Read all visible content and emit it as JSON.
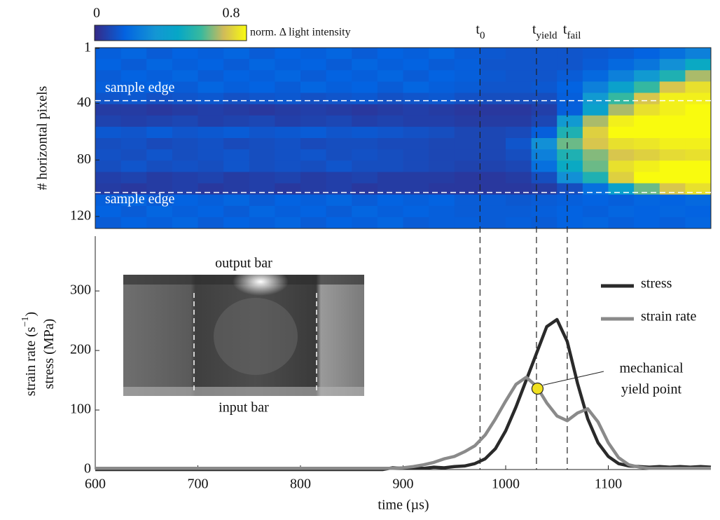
{
  "chart_data": [
    {
      "type": "heatmap",
      "ylabel": "# horizontal pixels",
      "x_edges": [
        600,
        625,
        650,
        675,
        700,
        725,
        750,
        775,
        800,
        825,
        850,
        875,
        900,
        925,
        950,
        975,
        1000,
        1025,
        1050,
        1075,
        1100,
        1125,
        1150,
        1175,
        1200
      ],
      "y_edges": [
        0.5,
        8.5,
        16.5,
        24.5,
        32.5,
        40.5,
        48.5,
        56.5,
        64.5,
        72.5,
        80.5,
        88.5,
        96.5,
        104.5,
        112.5,
        120.5,
        128.5
      ],
      "xlim": [
        600,
        1200
      ],
      "ylim": [
        0.5,
        128.5
      ],
      "yticks": [
        1,
        40,
        80,
        120
      ],
      "y_reversed": true,
      "colorbar": {
        "clim": [
          0,
          0.8
        ],
        "ticks": [
          0,
          0.8
        ],
        "label": "norm. Δ light intensity",
        "colormap": "parula"
      },
      "hlines": [
        {
          "y": 38,
          "label": "sample edge"
        },
        {
          "y": 103,
          "label": "sample edge"
        }
      ],
      "z": [
        [
          0.15,
          0.17,
          0.14,
          0.16,
          0.15,
          0.17,
          0.14,
          0.16,
          0.15,
          0.17,
          0.14,
          0.16,
          0.15,
          0.17,
          0.14,
          0.13,
          0.12,
          0.12,
          0.12,
          0.13,
          0.14,
          0.16,
          0.2,
          0.25
        ],
        [
          0.16,
          0.14,
          0.17,
          0.15,
          0.16,
          0.14,
          0.17,
          0.15,
          0.16,
          0.14,
          0.17,
          0.15,
          0.16,
          0.14,
          0.15,
          0.12,
          0.12,
          0.12,
          0.12,
          0.14,
          0.18,
          0.22,
          0.3,
          0.45
        ],
        [
          0.14,
          0.16,
          0.15,
          0.17,
          0.14,
          0.16,
          0.15,
          0.17,
          0.14,
          0.16,
          0.15,
          0.17,
          0.14,
          0.16,
          0.15,
          0.13,
          0.12,
          0.12,
          0.14,
          0.18,
          0.25,
          0.35,
          0.5,
          0.65
        ],
        [
          0.15,
          0.15,
          0.16,
          0.14,
          0.17,
          0.15,
          0.16,
          0.14,
          0.17,
          0.15,
          0.16,
          0.14,
          0.17,
          0.15,
          0.14,
          0.12,
          0.12,
          0.13,
          0.16,
          0.25,
          0.4,
          0.55,
          0.7,
          0.75
        ],
        [
          0.12,
          0.13,
          0.11,
          0.12,
          0.13,
          0.11,
          0.12,
          0.13,
          0.11,
          0.12,
          0.13,
          0.11,
          0.12,
          0.13,
          0.11,
          0.1,
          0.1,
          0.1,
          0.15,
          0.35,
          0.55,
          0.7,
          0.78,
          0.78
        ],
        [
          0.05,
          0.05,
          0.04,
          0.05,
          0.06,
          0.05,
          0.04,
          0.05,
          0.06,
          0.05,
          0.04,
          0.05,
          0.06,
          0.05,
          0.04,
          0.04,
          0.04,
          0.06,
          0.15,
          0.4,
          0.65,
          0.75,
          0.78,
          0.8
        ],
        [
          0.07,
          0.06,
          0.07,
          0.08,
          0.06,
          0.07,
          0.08,
          0.06,
          0.07,
          0.08,
          0.06,
          0.07,
          0.06,
          0.06,
          0.05,
          0.05,
          0.05,
          0.08,
          0.35,
          0.65,
          0.78,
          0.8,
          0.8,
          0.8
        ],
        [
          0.13,
          0.12,
          0.14,
          0.12,
          0.13,
          0.14,
          0.12,
          0.13,
          0.14,
          0.12,
          0.13,
          0.12,
          0.11,
          0.1,
          0.08,
          0.08,
          0.09,
          0.15,
          0.5,
          0.72,
          0.8,
          0.8,
          0.8,
          0.8
        ],
        [
          0.1,
          0.11,
          0.09,
          0.1,
          0.11,
          0.09,
          0.1,
          0.11,
          0.09,
          0.1,
          0.1,
          0.09,
          0.09,
          0.08,
          0.08,
          0.08,
          0.12,
          0.3,
          0.6,
          0.7,
          0.75,
          0.76,
          0.78,
          0.78
        ],
        [
          0.11,
          0.1,
          0.12,
          0.1,
          0.11,
          0.12,
          0.1,
          0.11,
          0.12,
          0.1,
          0.11,
          0.1,
          0.09,
          0.08,
          0.08,
          0.08,
          0.1,
          0.25,
          0.5,
          0.62,
          0.7,
          0.72,
          0.74,
          0.75
        ],
        [
          0.1,
          0.12,
          0.1,
          0.11,
          0.1,
          0.12,
          0.1,
          0.11,
          0.1,
          0.12,
          0.1,
          0.1,
          0.09,
          0.08,
          0.07,
          0.07,
          0.08,
          0.2,
          0.45,
          0.6,
          0.75,
          0.78,
          0.8,
          0.8
        ],
        [
          0.06,
          0.07,
          0.05,
          0.06,
          0.07,
          0.05,
          0.06,
          0.07,
          0.05,
          0.06,
          0.07,
          0.05,
          0.05,
          0.05,
          0.04,
          0.04,
          0.05,
          0.1,
          0.3,
          0.5,
          0.72,
          0.8,
          0.8,
          0.8
        ],
        [
          0.05,
          0.04,
          0.05,
          0.06,
          0.04,
          0.05,
          0.06,
          0.04,
          0.05,
          0.06,
          0.04,
          0.05,
          0.05,
          0.04,
          0.04,
          0.04,
          0.04,
          0.05,
          0.1,
          0.2,
          0.4,
          0.6,
          0.7,
          0.75
        ],
        [
          0.15,
          0.17,
          0.14,
          0.16,
          0.15,
          0.17,
          0.14,
          0.16,
          0.15,
          0.17,
          0.14,
          0.16,
          0.15,
          0.16,
          0.14,
          0.14,
          0.13,
          0.14,
          0.15,
          0.16,
          0.15,
          0.17,
          0.16,
          0.18
        ],
        [
          0.16,
          0.14,
          0.17,
          0.15,
          0.16,
          0.14,
          0.17,
          0.15,
          0.16,
          0.14,
          0.17,
          0.15,
          0.16,
          0.15,
          0.14,
          0.14,
          0.14,
          0.15,
          0.16,
          0.15,
          0.17,
          0.16,
          0.17,
          0.16
        ],
        [
          0.14,
          0.16,
          0.15,
          0.17,
          0.14,
          0.16,
          0.15,
          0.17,
          0.14,
          0.16,
          0.15,
          0.17,
          0.14,
          0.15,
          0.15,
          0.14,
          0.15,
          0.14,
          0.16,
          0.17,
          0.15,
          0.16,
          0.15,
          0.17
        ]
      ]
    },
    {
      "type": "line",
      "xlabel": "time (µs)",
      "ylabel_lines": [
        {
          "text": "strain rate (s",
          "sup": "−1",
          "close": ")"
        },
        {
          "text": "stress (MPa)"
        }
      ],
      "xlim": [
        600,
        1200
      ],
      "ylim": [
        0,
        392
      ],
      "xticks": [
        600,
        700,
        800,
        900,
        1000,
        1100
      ],
      "yticks": [
        0,
        100,
        200,
        300
      ],
      "x": [
        600,
        700,
        800,
        880,
        890,
        900,
        910,
        920,
        930,
        940,
        950,
        960,
        970,
        980,
        990,
        1000,
        1010,
        1020,
        1030,
        1040,
        1050,
        1060,
        1070,
        1080,
        1090,
        1100,
        1110,
        1120,
        1130,
        1140,
        1150,
        1160,
        1170,
        1180,
        1190,
        1200
      ],
      "series": [
        {
          "name": "stress",
          "color": "#2a2a2a",
          "values": [
            0,
            0,
            0,
            0,
            3,
            2,
            3,
            2,
            4,
            3,
            5,
            6,
            10,
            18,
            35,
            65,
            105,
            150,
            195,
            240,
            252,
            215,
            145,
            85,
            45,
            22,
            10,
            6,
            5,
            4,
            5,
            4,
            5,
            4,
            5,
            4
          ]
        },
        {
          "name": "strain rate",
          "color": "#8a8a8a",
          "values": [
            2,
            2,
            2,
            2,
            2,
            3,
            5,
            8,
            12,
            18,
            22,
            30,
            40,
            58,
            85,
            115,
            143,
            155,
            140,
            112,
            90,
            82,
            95,
            102,
            80,
            45,
            20,
            8,
            4,
            2,
            2,
            2,
            2,
            2,
            2,
            2
          ]
        }
      ],
      "markers": [
        {
          "x": 975,
          "label": "t",
          "subscript": "0"
        },
        {
          "x": 1030,
          "label": "t",
          "subscript": "yield"
        },
        {
          "x": 1060,
          "label": "t",
          "subscript": "fail"
        }
      ],
      "yield_point": {
        "x": 1031,
        "y": 136,
        "color": "#f0e020",
        "label_lines": [
          "mechanical",
          "yield point"
        ]
      },
      "inset": {
        "top_label": "output bar",
        "bottom_label": "input bar"
      }
    }
  ]
}
